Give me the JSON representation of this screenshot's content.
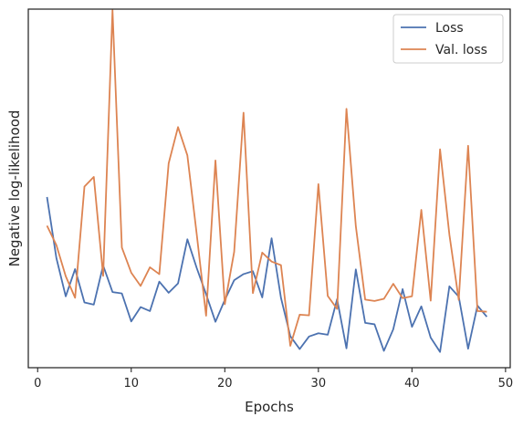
{
  "chart_data": {
    "type": "line",
    "xlabel": "Epochs",
    "ylabel": "Negative log-likelihood",
    "xlim": [
      -1,
      50.5
    ],
    "ylim": [
      0,
      100
    ],
    "xticks": [
      0,
      10,
      20,
      30,
      40,
      50
    ],
    "yticks_visible": false,
    "grid": false,
    "legend_position": "top-right",
    "x": [
      1,
      2,
      3,
      4,
      5,
      6,
      7,
      8,
      9,
      10,
      11,
      12,
      13,
      14,
      15,
      16,
      17,
      18,
      19,
      20,
      21,
      22,
      23,
      24,
      25,
      26,
      27,
      28,
      29,
      30,
      31,
      32,
      33,
      34,
      35,
      36,
      37,
      38,
      39,
      40,
      41,
      42,
      43,
      44,
      45,
      46,
      47,
      48
    ],
    "series": [
      {
        "name": "Loss",
        "color": "#4c72b0",
        "values": [
          47.6,
          30.6,
          19.9,
          27.5,
          18.2,
          17.6,
          28.5,
          21.1,
          20.7,
          12.9,
          16.9,
          15.8,
          24.0,
          20.9,
          23.5,
          35.8,
          27.8,
          20.5,
          12.8,
          18.9,
          24.4,
          26.1,
          26.9,
          19.6,
          36.1,
          19.5,
          8.8,
          5.2,
          8.7,
          9.6,
          9.2,
          19.1,
          5.4,
          27.4,
          12.5,
          12.1,
          4.7,
          10.7,
          21.9,
          11.4,
          17.1,
          8.4,
          4.4,
          22.7,
          19.8,
          5.3,
          17.3,
          14.2
        ]
      },
      {
        "name": "Val. loss",
        "color": "#dd8452",
        "values": [
          39.6,
          34.2,
          25.5,
          19.5,
          50.5,
          53.2,
          25.6,
          99.7,
          33.5,
          26.5,
          22.8,
          28.0,
          26.1,
          57.0,
          67.1,
          59.2,
          37.2,
          14.5,
          57.8,
          17.7,
          32.3,
          71.1,
          20.8,
          32.1,
          29.6,
          28.6,
          6.1,
          14.8,
          14.6,
          51.2,
          20.0,
          16.4,
          72.2,
          39.5,
          19.0,
          18.6,
          19.2,
          23.4,
          19.4,
          19.9,
          44.0,
          18.7,
          60.9,
          37.1,
          18.9,
          61.9,
          15.8,
          15.6
        ]
      }
    ]
  }
}
